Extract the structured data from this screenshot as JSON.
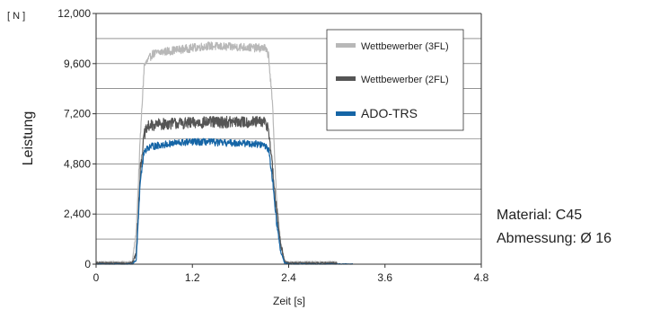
{
  "chart_data": {
    "type": "line",
    "y_unit_label": "[ N ]",
    "xlabel": "Zeit [s]",
    "ylabel": "Leistung",
    "xlim": [
      0,
      4.8
    ],
    "ylim": [
      0,
      12000
    ],
    "x_ticks": [
      "0",
      "1.2",
      "2.4",
      "3.6",
      "4.8"
    ],
    "y_ticks": [
      "0",
      "2,400",
      "4,800",
      "7,200",
      "9,600",
      "12,000"
    ],
    "x_tick_values": [
      0,
      1.2,
      2.4,
      3.6,
      4.8
    ],
    "y_tick_values": [
      0,
      2400,
      4800,
      7200,
      9600,
      12000
    ],
    "grid_y_step": 1200,
    "grid_x": false,
    "legend_position": "top-right",
    "series": [
      {
        "name": "Wettbewerber (3FL)",
        "color": "#b8b8b8",
        "noise": 200,
        "x": [
          0,
          0.45,
          0.5,
          0.55,
          0.6,
          0.7,
          0.8,
          1.0,
          1.2,
          1.4,
          1.6,
          1.8,
          2.0,
          2.1,
          2.15,
          2.2,
          2.25,
          2.3,
          2.35,
          2.4,
          3.0
        ],
        "y": [
          100,
          100,
          1500,
          6000,
          9500,
          10050,
          10150,
          10250,
          10350,
          10450,
          10400,
          10400,
          10350,
          10350,
          10000,
          7500,
          3000,
          1000,
          150,
          100,
          100
        ]
      },
      {
        "name": "Wettbewerber (2FL)",
        "color": "#555555",
        "noise": 280,
        "x": [
          0,
          0.45,
          0.5,
          0.55,
          0.6,
          0.65,
          0.8,
          1.0,
          1.2,
          1.4,
          1.6,
          1.8,
          2.0,
          2.1,
          2.15,
          2.2,
          2.25,
          2.3,
          2.35,
          2.4,
          3.0
        ],
        "y": [
          50,
          50,
          500,
          4500,
          6200,
          6600,
          6700,
          6750,
          6750,
          6800,
          6800,
          6800,
          6800,
          6800,
          6500,
          4500,
          2500,
          1000,
          100,
          50,
          50
        ]
      },
      {
        "name": "ADO-TRS",
        "color": "#1565a6",
        "noise": 170,
        "x": [
          0,
          0.45,
          0.5,
          0.55,
          0.6,
          0.65,
          0.8,
          1.0,
          1.2,
          1.4,
          1.6,
          1.8,
          2.0,
          2.1,
          2.15,
          2.2,
          2.25,
          2.3,
          2.35,
          2.4,
          3.2
        ],
        "y": [
          0,
          0,
          200,
          4000,
          5400,
          5600,
          5700,
          5800,
          5850,
          5850,
          5800,
          5800,
          5750,
          5700,
          5500,
          4000,
          2000,
          600,
          50,
          0,
          0
        ]
      }
    ]
  },
  "info": {
    "material": "Material: C45",
    "abmessung": "Abmessung: Ø 16"
  }
}
